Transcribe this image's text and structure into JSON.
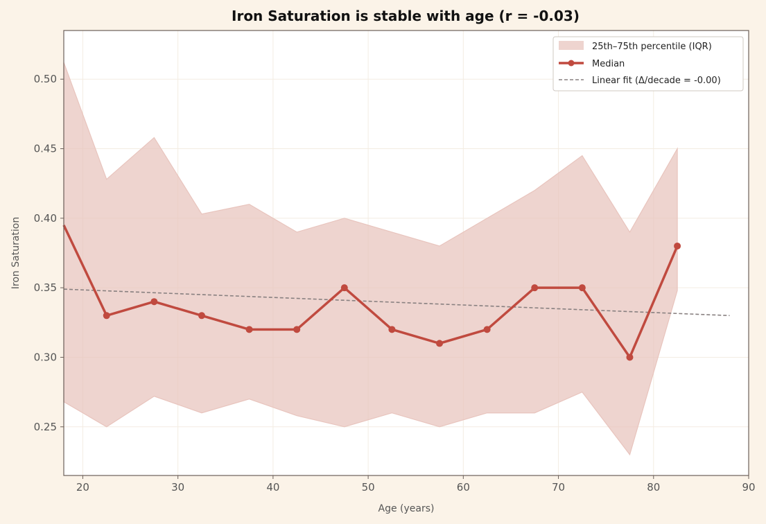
{
  "chart_data": {
    "type": "line",
    "title": "Iron Saturation is stable with age (r = -0.03)",
    "xlabel": "Age (years)",
    "ylabel": "Iron Saturation",
    "xlim": [
      18,
      90
    ],
    "ylim": [
      0.215,
      0.535
    ],
    "xticks": [
      20,
      30,
      40,
      50,
      60,
      70,
      80,
      90
    ],
    "yticks": [
      0.25,
      0.3,
      0.35,
      0.4,
      0.45,
      0.5
    ],
    "ytick_labels": [
      "0.25",
      "0.30",
      "0.35",
      "0.40",
      "0.45",
      "0.50"
    ],
    "grid": true,
    "legend_position": "top-right",
    "series": [
      {
        "name": "25th–75th percentile (IQR)",
        "kind": "band",
        "x": [
          18,
          22.5,
          27.5,
          32.5,
          37.5,
          42.5,
          47.5,
          52.5,
          57.5,
          62.5,
          67.5,
          72.5,
          77.5,
          82.5
        ],
        "lower": [
          0.268,
          0.25,
          0.272,
          0.26,
          0.27,
          0.258,
          0.25,
          0.26,
          0.25,
          0.26,
          0.26,
          0.275,
          0.23,
          0.348
        ],
        "upper": [
          0.512,
          0.428,
          0.458,
          0.403,
          0.41,
          0.39,
          0.4,
          0.39,
          0.38,
          0.4,
          0.42,
          0.445,
          0.39,
          0.45
        ]
      },
      {
        "name": "Median",
        "kind": "line",
        "x": [
          18,
          22.5,
          27.5,
          32.5,
          37.5,
          42.5,
          47.5,
          52.5,
          57.5,
          62.5,
          67.5,
          72.5,
          77.5,
          82.5
        ],
        "y": [
          0.395,
          0.33,
          0.34,
          0.33,
          0.32,
          0.32,
          0.35,
          0.32,
          0.31,
          0.32,
          0.35,
          0.35,
          0.3,
          0.38
        ]
      },
      {
        "name": "Linear fit (Δ/decade = -0.00)",
        "kind": "fit",
        "x": [
          18,
          88
        ],
        "y": [
          0.349,
          0.33
        ]
      }
    ]
  },
  "colors": {
    "background": "#fbf3e8",
    "plot_background": "#ffffff",
    "band": "#e8c4bd",
    "median": "#c04a3f",
    "fit": "#888080",
    "axis": "#6b5f5a",
    "grid": "#f3ece2"
  }
}
